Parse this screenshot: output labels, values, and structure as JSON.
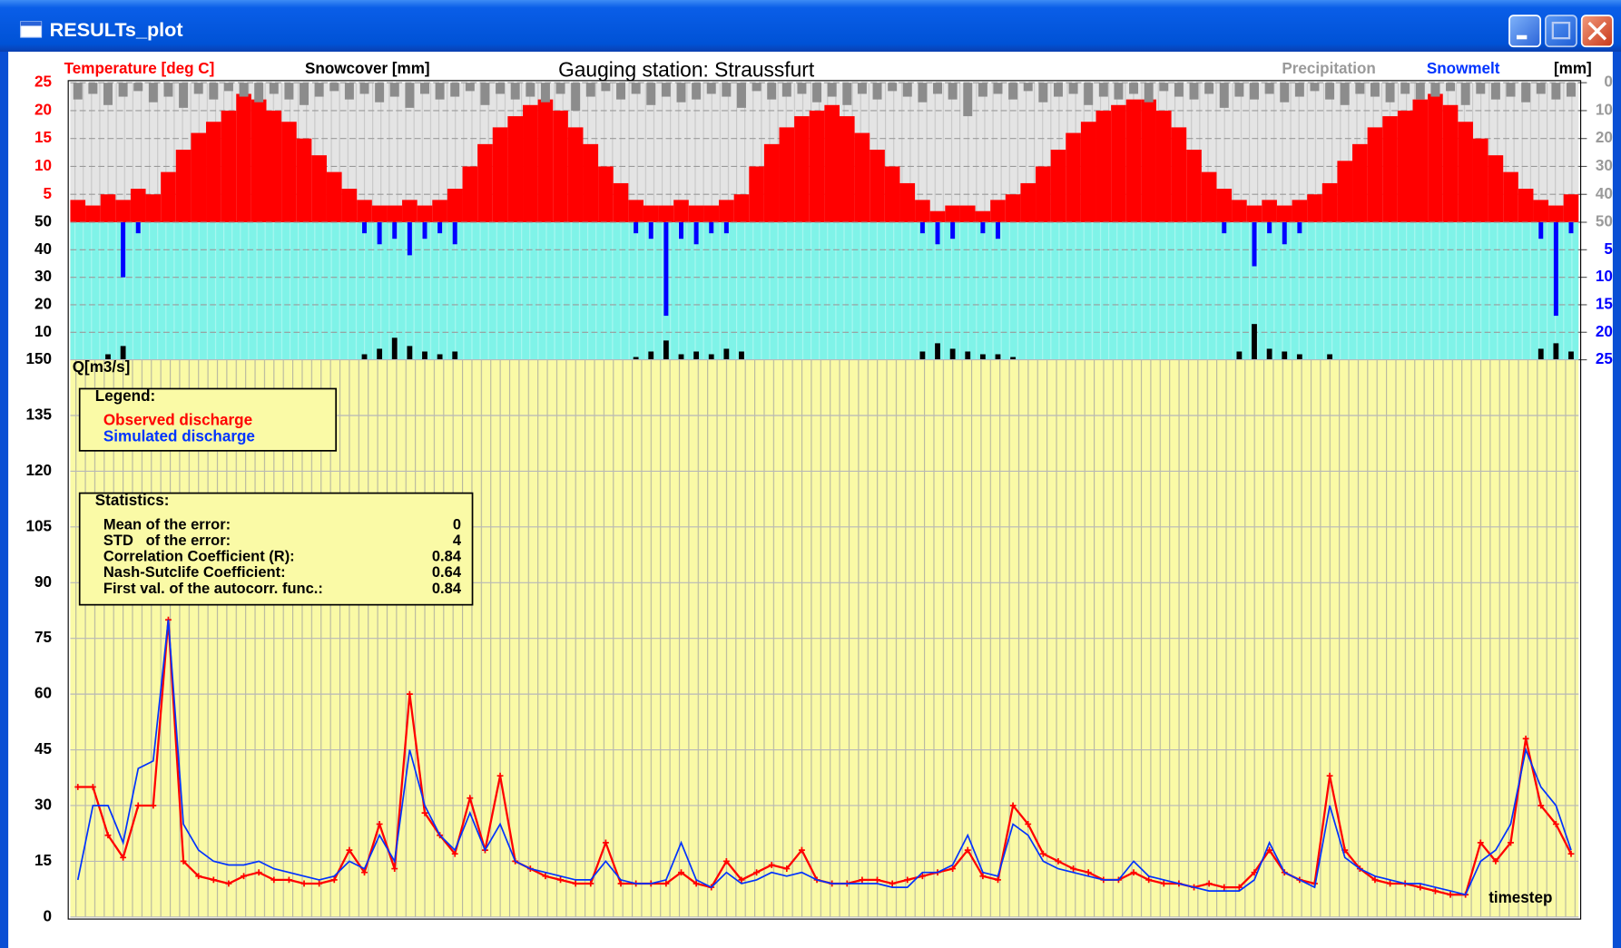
{
  "window_title": "RESULTs_plot",
  "title": "Gauging station: Straussfurt",
  "right_unit": "[mm]",
  "chart_data": [
    {
      "type": "bar",
      "ylim": [
        0,
        25
      ],
      "yticks": [
        5,
        10,
        15,
        20,
        25
      ],
      "y2lim": [
        0,
        50
      ],
      "y2ticks": [
        0,
        10,
        20,
        30,
        40,
        50
      ],
      "y2_inverted": true,
      "grid": true,
      "series": [
        {
          "name": "Temperature [deg C]",
          "color": "#ff0000",
          "values": [
            4,
            3,
            5,
            4,
            6,
            5,
            9,
            13,
            16,
            18,
            20,
            23,
            22,
            20,
            18,
            15,
            12,
            9,
            6,
            4,
            3,
            3,
            4,
            3,
            4,
            6,
            10,
            14,
            17,
            19,
            21,
            22,
            20,
            17,
            14,
            10,
            7,
            4,
            3,
            3,
            4,
            3,
            3,
            4,
            5,
            10,
            14,
            17,
            19,
            20,
            21,
            19,
            16,
            13,
            10,
            7,
            4,
            2,
            3,
            3,
            2,
            4,
            5,
            7,
            10,
            13,
            16,
            18,
            20,
            21,
            22,
            22,
            20,
            17,
            13,
            9,
            6,
            4,
            3,
            4,
            3,
            4,
            5,
            7,
            11,
            14,
            17,
            19,
            20,
            22,
            23,
            21,
            18,
            15,
            12,
            9,
            6,
            4,
            3,
            5
          ]
        },
        {
          "name": "Precipitation",
          "color": "#8c8c8c",
          "axis": "y2",
          "values": [
            6,
            4,
            8,
            5,
            3,
            7,
            5,
            9,
            4,
            6,
            3,
            5,
            7,
            4,
            6,
            8,
            5,
            3,
            6,
            4,
            7,
            5,
            9,
            4,
            6,
            5,
            3,
            8,
            4,
            6,
            5,
            7,
            4,
            10,
            5,
            3,
            6,
            4,
            8,
            5,
            7,
            6,
            4,
            5,
            9,
            3,
            6,
            5,
            4,
            7,
            5,
            8,
            4,
            6,
            3,
            5,
            7,
            4,
            6,
            12,
            5,
            4,
            6,
            3,
            7,
            5,
            4,
            8,
            5,
            6,
            4,
            7,
            3,
            5,
            6,
            4,
            9,
            5,
            6,
            4,
            7,
            5,
            3,
            6,
            8,
            4,
            5,
            7,
            4,
            6,
            5,
            3,
            8,
            4,
            6,
            5,
            7,
            4,
            6,
            5
          ]
        }
      ]
    },
    {
      "type": "bar",
      "ylim": [
        0,
        50
      ],
      "yticks": [
        10,
        20,
        30,
        40,
        50
      ],
      "y2lim": [
        0,
        25
      ],
      "y2ticks": [
        5,
        10,
        15,
        20,
        25
      ],
      "y2_inverted": true,
      "grid": true,
      "series": [
        {
          "name": "Snowcover [mm]",
          "color": "#000000",
          "values": [
            0,
            0,
            2,
            5,
            0,
            0,
            0,
            0,
            0,
            0,
            0,
            0,
            0,
            0,
            0,
            0,
            0,
            0,
            0,
            2,
            4,
            8,
            5,
            3,
            2,
            3,
            0,
            0,
            0,
            0,
            0,
            0,
            0,
            0,
            0,
            0,
            0,
            1,
            3,
            7,
            2,
            3,
            2,
            4,
            3,
            0,
            0,
            0,
            0,
            0,
            0,
            0,
            0,
            0,
            0,
            0,
            3,
            6,
            4,
            3,
            2,
            2,
            1,
            0,
            0,
            0,
            0,
            0,
            0,
            0,
            0,
            0,
            0,
            0,
            0,
            0,
            0,
            3,
            13,
            4,
            3,
            2,
            0,
            2,
            0,
            0,
            0,
            0,
            0,
            0,
            0,
            0,
            0,
            0,
            0,
            0,
            0,
            4,
            6,
            3
          ]
        },
        {
          "name": "Snowmelt",
          "color": "#0000ff",
          "axis": "y2",
          "values": [
            0,
            0,
            0,
            10,
            2,
            0,
            0,
            0,
            0,
            0,
            0,
            0,
            0,
            0,
            0,
            0,
            0,
            0,
            0,
            2,
            4,
            3,
            6,
            3,
            2,
            4,
            0,
            0,
            0,
            0,
            0,
            0,
            0,
            0,
            0,
            0,
            0,
            2,
            3,
            17,
            3,
            4,
            2,
            2,
            0,
            0,
            0,
            0,
            0,
            0,
            0,
            0,
            0,
            0,
            0,
            0,
            2,
            4,
            3,
            0,
            2,
            3,
            0,
            0,
            0,
            0,
            0,
            0,
            0,
            0,
            0,
            0,
            0,
            0,
            0,
            0,
            2,
            0,
            8,
            2,
            4,
            2,
            0,
            0,
            0,
            0,
            0,
            0,
            0,
            0,
            0,
            0,
            0,
            0,
            0,
            0,
            0,
            3,
            17,
            2
          ]
        }
      ]
    },
    {
      "type": "line",
      "ylabel": "Q[m3/s]",
      "xlabel": "timestep",
      "ylim": [
        0,
        150
      ],
      "yticks": [
        0,
        15,
        30,
        45,
        60,
        75,
        90,
        105,
        120,
        135,
        150
      ],
      "grid": true,
      "legend_title": "Legend:",
      "series": [
        {
          "name": "Observed discharge",
          "color": "#ff0000",
          "values": [
            35,
            35,
            22,
            16,
            30,
            30,
            80,
            15,
            11,
            10,
            9,
            11,
            12,
            10,
            10,
            9,
            9,
            10,
            18,
            12,
            25,
            13,
            60,
            28,
            22,
            17,
            32,
            18,
            38,
            15,
            13,
            11,
            10,
            9,
            9,
            20,
            9,
            9,
            9,
            9,
            12,
            9,
            8,
            15,
            10,
            12,
            14,
            13,
            18,
            10,
            9,
            9,
            10,
            10,
            9,
            10,
            11,
            12,
            13,
            18,
            11,
            10,
            30,
            25,
            17,
            15,
            13,
            12,
            10,
            10,
            12,
            10,
            9,
            9,
            8,
            9,
            8,
            8,
            12,
            18,
            12,
            10,
            9,
            38,
            18,
            13,
            10,
            9,
            9,
            8,
            7,
            6,
            6,
            20,
            15,
            20,
            48,
            30,
            25,
            17
          ]
        },
        {
          "name": "Simulated discharge",
          "color": "#0033ff",
          "values": [
            10,
            30,
            30,
            20,
            40,
            42,
            80,
            25,
            18,
            15,
            14,
            14,
            15,
            13,
            12,
            11,
            10,
            11,
            15,
            13,
            22,
            15,
            45,
            30,
            22,
            18,
            28,
            18,
            25,
            15,
            13,
            12,
            11,
            10,
            10,
            15,
            10,
            9,
            9,
            10,
            20,
            10,
            8,
            12,
            9,
            10,
            12,
            11,
            12,
            10,
            9,
            9,
            9,
            9,
            8,
            8,
            12,
            12,
            14,
            22,
            12,
            11,
            25,
            22,
            15,
            13,
            12,
            11,
            10,
            10,
            15,
            11,
            10,
            9,
            8,
            7,
            7,
            7,
            10,
            20,
            12,
            10,
            8,
            30,
            16,
            13,
            11,
            10,
            9,
            9,
            8,
            7,
            6,
            15,
            18,
            25,
            45,
            35,
            30,
            18
          ]
        }
      ]
    }
  ],
  "statistics": {
    "title": "Statistics:",
    "rows": [
      {
        "label": "Mean of the error:",
        "value": 0
      },
      {
        "label": "STD   of the error:",
        "value": 4
      },
      {
        "label": "Correlation Coefficient (R):",
        "value": 0.84
      },
      {
        "label": "Nash-Sutclife Coefficient:",
        "value": 0.64
      },
      {
        "label": "First val. of the autocorr. func.:",
        "value": 0.84
      }
    ]
  }
}
